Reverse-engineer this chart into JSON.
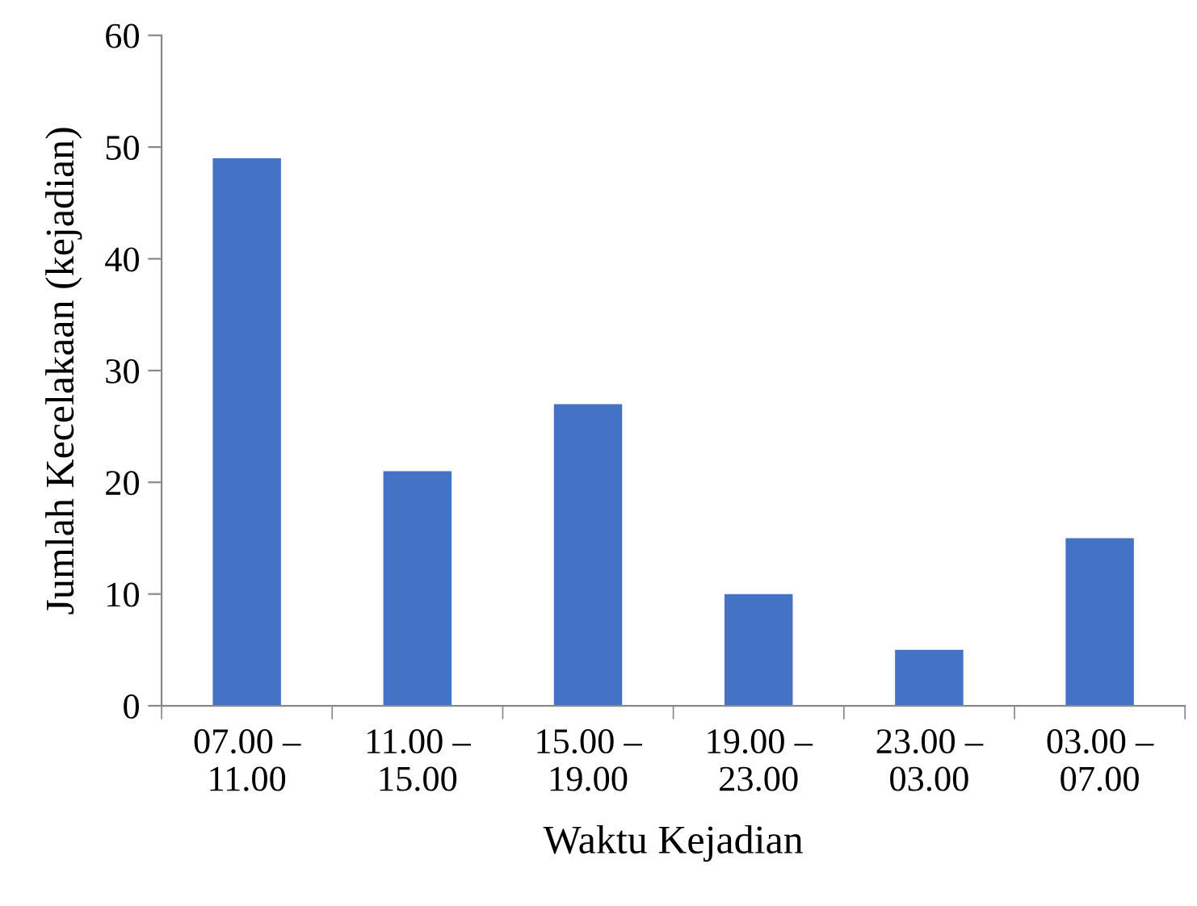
{
  "chart_data": {
    "type": "bar",
    "xlabel": "Waktu Kejadian",
    "ylabel": "Jumlah Kecelakaan (kejadian)",
    "categories": [
      "07.00 –\n11.00",
      "11.00 –\n15.00",
      "15.00 –\n19.00",
      "19.00 –\n23.00",
      "23.00 –\n03.00",
      "03.00 –\n07.00"
    ],
    "values": [
      49,
      21,
      27,
      10,
      5,
      15
    ],
    "color": "#4472c4",
    "ylim": [
      0,
      60
    ],
    "yticks": [
      0,
      10,
      20,
      30,
      40,
      50,
      60
    ],
    "grid": false,
    "legend": false
  }
}
